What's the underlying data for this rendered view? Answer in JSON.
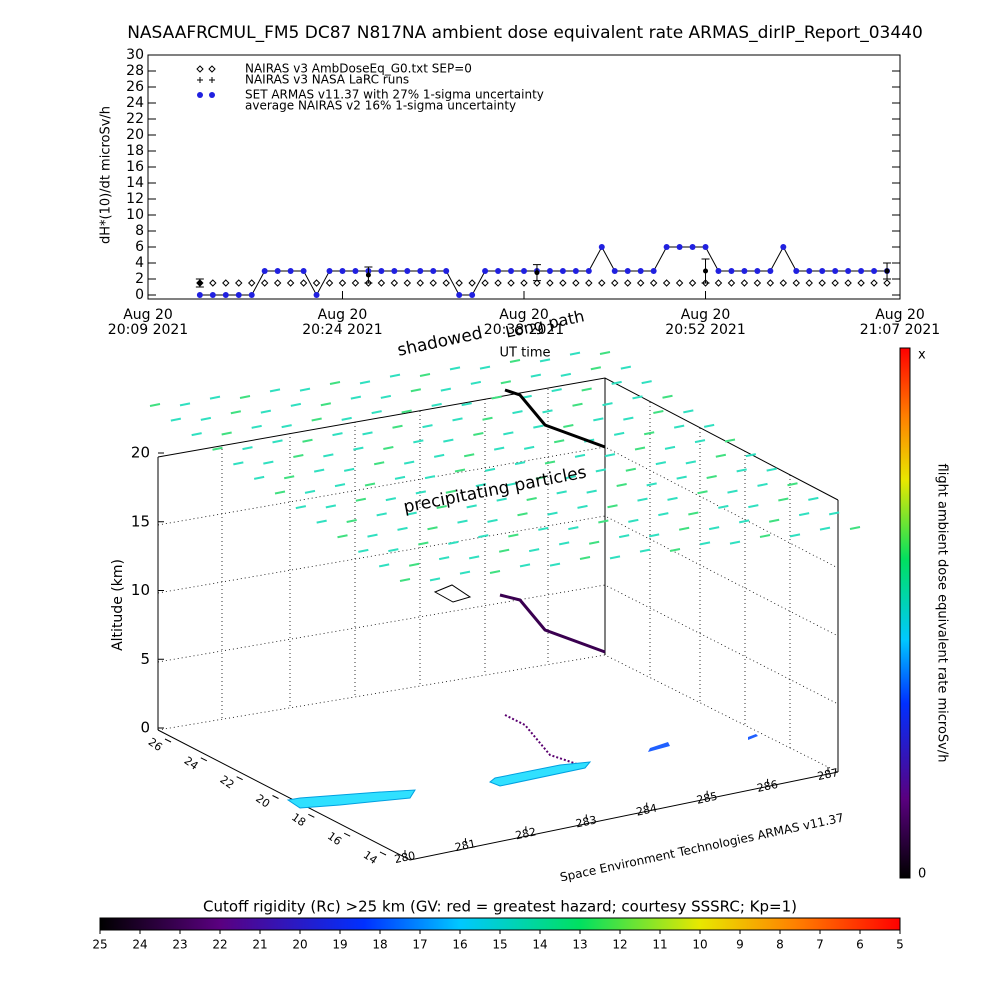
{
  "title": "NASAAFRCMUL_FM5 DC87 N817NA ambient dose equivalent rate ARMAS_dirIP_Report_03440",
  "chart_data": {
    "type": "line",
    "ylabel": "dH*(10)/dt microSv/h",
    "xlabel": "UT time",
    "xlim": [
      "2021-08-20 20:09",
      "2021-08-20 21:07"
    ],
    "xticks": [
      {
        "value": "2021-08-20 20:09",
        "label": [
          "Aug 20",
          "20:09 2021"
        ]
      },
      {
        "value": "2021-08-20 20:24",
        "label": [
          "Aug 20",
          "20:24 2021"
        ]
      },
      {
        "value": "2021-08-20 20:38",
        "label": [
          "Aug 20",
          "20:38 2021"
        ]
      },
      {
        "value": "2021-08-20 20:52",
        "label": [
          "Aug 20",
          "20:52 2021"
        ]
      },
      {
        "value": "2021-08-20 21:07",
        "label": [
          "Aug 20",
          "21:07 2021"
        ]
      }
    ],
    "ylim": [
      -0.5,
      30
    ],
    "yticks": [
      0,
      2,
      4,
      6,
      8,
      10,
      12,
      14,
      16,
      18,
      20,
      22,
      24,
      26,
      28,
      30
    ],
    "series": [
      {
        "name": "NAIRAS v3 AmbDoseEq_G0.txt SEP=0",
        "marker": "diamond",
        "color": "#000000",
        "x": [
          "2021-08-20 20:13",
          "2021-08-20 20:14",
          "2021-08-20 20:15",
          "2021-08-20 20:16",
          "2021-08-20 20:17",
          "2021-08-20 20:18",
          "2021-08-20 20:19",
          "2021-08-20 20:20",
          "2021-08-20 20:21",
          "2021-08-20 20:22",
          "2021-08-20 20:23",
          "2021-08-20 20:24",
          "2021-08-20 20:25",
          "2021-08-20 20:26",
          "2021-08-20 20:27",
          "2021-08-20 20:28",
          "2021-08-20 20:29",
          "2021-08-20 20:30",
          "2021-08-20 20:31",
          "2021-08-20 20:32",
          "2021-08-20 20:33",
          "2021-08-20 20:34",
          "2021-08-20 20:35",
          "2021-08-20 20:36",
          "2021-08-20 20:37",
          "2021-08-20 20:38",
          "2021-08-20 20:39",
          "2021-08-20 20:40",
          "2021-08-20 20:41",
          "2021-08-20 20:42",
          "2021-08-20 20:43",
          "2021-08-20 20:44",
          "2021-08-20 20:45",
          "2021-08-20 20:46",
          "2021-08-20 20:47",
          "2021-08-20 20:48",
          "2021-08-20 20:49",
          "2021-08-20 20:50",
          "2021-08-20 20:51",
          "2021-08-20 20:52",
          "2021-08-20 20:53",
          "2021-08-20 20:54",
          "2021-08-20 20:55",
          "2021-08-20 20:56",
          "2021-08-20 20:57",
          "2021-08-20 20:58",
          "2021-08-20 20:59",
          "2021-08-20 21:00",
          "2021-08-20 21:01",
          "2021-08-20 21:02",
          "2021-08-20 21:03",
          "2021-08-20 21:04",
          "2021-08-20 21:05",
          "2021-08-20 21:06"
        ],
        "values": [
          1.5,
          1.5,
          1.5,
          1.5,
          1.5,
          1.5,
          1.5,
          1.5,
          1.5,
          1.5,
          1.5,
          1.5,
          1.5,
          1.5,
          1.5,
          1.5,
          1.5,
          1.5,
          1.5,
          1.5,
          1.5,
          1.5,
          1.5,
          1.5,
          1.5,
          1.5,
          1.5,
          1.5,
          1.5,
          1.5,
          1.5,
          1.5,
          1.5,
          1.5,
          1.5,
          1.5,
          1.5,
          1.5,
          1.5,
          1.5,
          1.5,
          1.5,
          1.5,
          1.5,
          1.5,
          1.5,
          1.5,
          1.5,
          1.5,
          1.5,
          1.5,
          1.5,
          1.5,
          1.5
        ]
      },
      {
        "name": "NAIRAS v3 NASA LaRC runs",
        "marker": "plus",
        "color": "#000000",
        "x": [],
        "values": []
      },
      {
        "name": "SET ARMAS v11.37 with 27% 1-sigma uncertainty",
        "marker": "dot",
        "color": "#2020e0",
        "line_color": "#000000",
        "x": [
          "2021-08-20 20:13",
          "2021-08-20 20:14",
          "2021-08-20 20:15",
          "2021-08-20 20:16",
          "2021-08-20 20:17",
          "2021-08-20 20:18",
          "2021-08-20 20:19",
          "2021-08-20 20:20",
          "2021-08-20 20:21",
          "2021-08-20 20:22",
          "2021-08-20 20:23",
          "2021-08-20 20:24",
          "2021-08-20 20:25",
          "2021-08-20 20:26",
          "2021-08-20 20:27",
          "2021-08-20 20:28",
          "2021-08-20 20:29",
          "2021-08-20 20:30",
          "2021-08-20 20:31",
          "2021-08-20 20:32",
          "2021-08-20 20:33",
          "2021-08-20 20:34",
          "2021-08-20 20:35",
          "2021-08-20 20:36",
          "2021-08-20 20:37",
          "2021-08-20 20:38",
          "2021-08-20 20:39",
          "2021-08-20 20:40",
          "2021-08-20 20:41",
          "2021-08-20 20:42",
          "2021-08-20 20:43",
          "2021-08-20 20:44",
          "2021-08-20 20:45",
          "2021-08-20 20:46",
          "2021-08-20 20:47",
          "2021-08-20 20:48",
          "2021-08-20 20:49",
          "2021-08-20 20:50",
          "2021-08-20 20:51",
          "2021-08-20 20:52",
          "2021-08-20 20:53",
          "2021-08-20 20:54",
          "2021-08-20 20:55",
          "2021-08-20 20:56",
          "2021-08-20 20:57",
          "2021-08-20 20:58",
          "2021-08-20 20:59",
          "2021-08-20 21:00",
          "2021-08-20 21:01",
          "2021-08-20 21:02",
          "2021-08-20 21:03",
          "2021-08-20 21:04",
          "2021-08-20 21:05",
          "2021-08-20 21:06"
        ],
        "values": [
          0,
          0,
          0,
          0,
          0,
          3,
          3,
          3,
          3,
          0,
          3,
          3,
          3,
          3,
          3,
          3,
          3,
          3,
          3,
          3,
          0,
          0,
          3,
          3,
          3,
          3,
          3,
          3,
          3,
          3,
          3,
          6,
          3,
          3,
          3,
          3,
          6,
          6,
          6,
          6,
          3,
          3,
          3,
          3,
          3,
          6,
          3,
          3,
          3,
          3,
          3,
          3,
          3,
          3
        ]
      },
      {
        "name": "average NAIRAS v2 16% 1-sigma uncertainty",
        "marker": "errorbar",
        "color": "#000000",
        "x": [
          "2021-08-20 20:13",
          "2021-08-20 20:26",
          "2021-08-20 20:39",
          "2021-08-20 20:52",
          "2021-08-20 21:06"
        ],
        "values": [
          1.5,
          2.5,
          2.8,
          3,
          3
        ],
        "errors": [
          0.5,
          1,
          1,
          1.5,
          1
        ]
      }
    ]
  },
  "panel3d": {
    "altitude_label": "Altitude (km)",
    "altitude_ticks": [
      0,
      5,
      10,
      15,
      20
    ],
    "latitude_ticks": [
      26,
      24,
      22,
      20,
      18,
      16,
      14
    ],
    "longitude_ticks": [
      280,
      281,
      282,
      283,
      284,
      285,
      286,
      287
    ],
    "annotations": [
      "shadowed",
      "Long path",
      "precipitating particles"
    ],
    "credit": "Space Environment Technologies ARMAS v11.37"
  },
  "colorbar_vertical": {
    "label": "flight ambient dose equivalent rate microSv/h",
    "max_label": "x",
    "min": 0
  },
  "colorbar_horizontal": {
    "title": "Cutoff rigidity (Rc) >25 km (GV: red = greatest hazard; courtesy SSSRC; Kp=1)",
    "ticks": [
      25,
      24,
      23,
      22,
      21,
      20,
      19,
      18,
      17,
      16,
      15,
      14,
      13,
      12,
      11,
      10,
      9,
      8,
      7,
      6,
      5
    ]
  }
}
